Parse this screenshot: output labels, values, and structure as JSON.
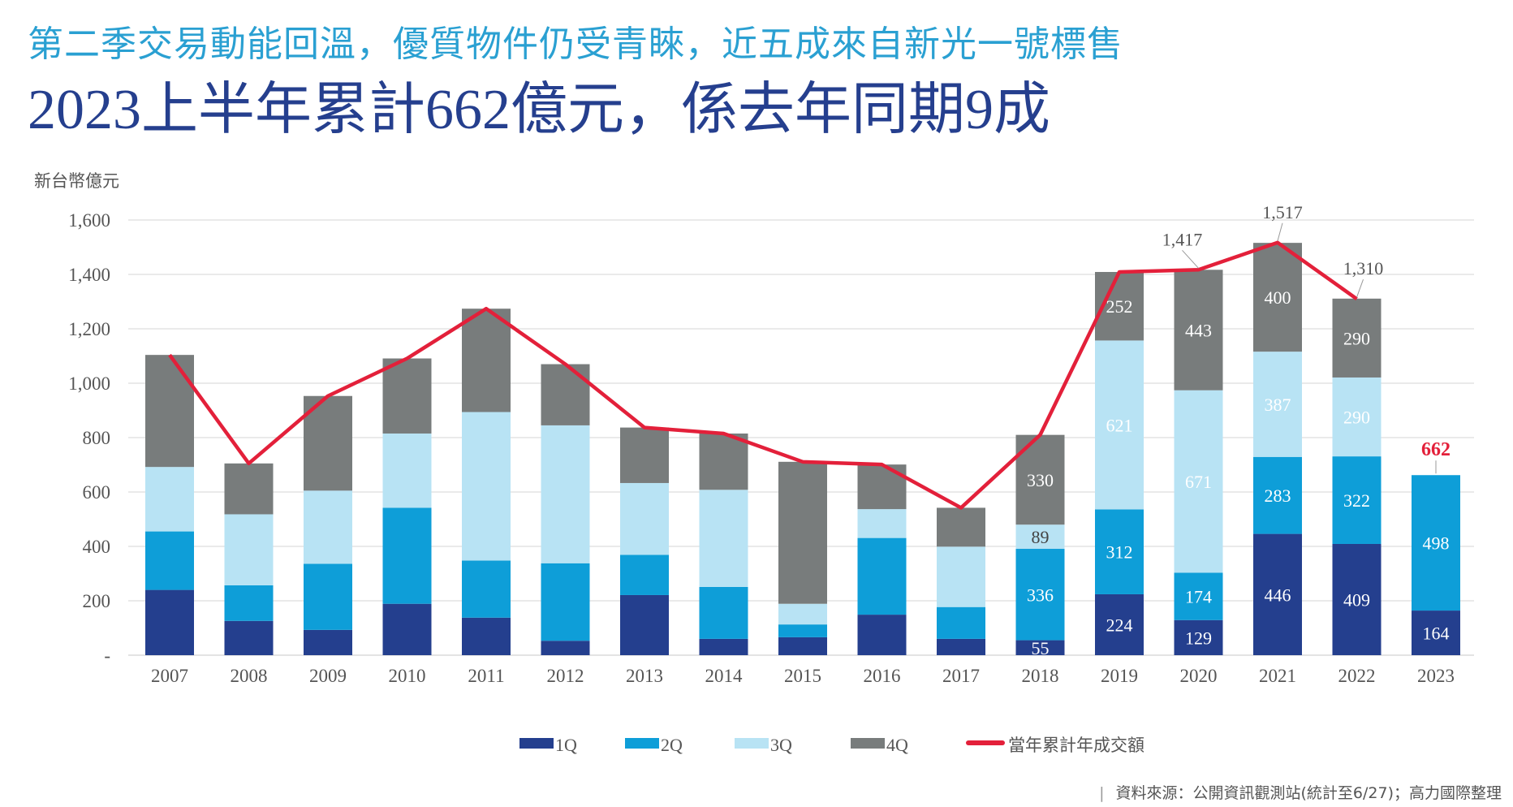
{
  "header": {
    "subtitle": "第二季交易動能回溫，優質物件仍受青睞，近五成來自新光一號標售",
    "title": "2023上半年累計662億元，係去年同期9成"
  },
  "source": "資料來源：公開資訊觀測站(統計至6/27)；高力國際整理",
  "chart_data": {
    "type": "bar",
    "stacked": true,
    "ylabel": "新台幣億元",
    "ylim": [
      0,
      1600
    ],
    "yticks": [
      0,
      200,
      400,
      600,
      800,
      1000,
      1200,
      1400,
      1600
    ],
    "ytick_labels": [
      "-",
      "200",
      "400",
      "600",
      "800",
      "1,000",
      "1,200",
      "1,400",
      "1,600"
    ],
    "grid": true,
    "legend_placement": "bottom",
    "categories": [
      "2007",
      "2008",
      "2009",
      "2010",
      "2011",
      "2012",
      "2013",
      "2014",
      "2015",
      "2016",
      "2017",
      "2018",
      "2019",
      "2020",
      "2021",
      "2022",
      "2023"
    ],
    "series": [
      {
        "name": "1Q",
        "color": "#243f8e",
        "values": [
          240,
          126,
          93,
          189,
          138,
          53,
          221,
          60,
          66,
          149,
          60,
          55,
          224,
          129,
          446,
          409,
          164
        ]
      },
      {
        "name": "2Q",
        "color": "#0e9ed8",
        "values": [
          215,
          131,
          243,
          353,
          210,
          285,
          148,
          191,
          47,
          282,
          117,
          336,
          312,
          174,
          283,
          322,
          498
        ]
      },
      {
        "name": "3Q",
        "color": "#b8e3f4",
        "values": [
          237,
          261,
          269,
          273,
          546,
          507,
          264,
          357,
          76,
          106,
          222,
          89,
          621,
          671,
          387,
          290,
          null
        ]
      },
      {
        "name": "4Q",
        "color": "#787c7c",
        "values": [
          412,
          187,
          348,
          276,
          380,
          225,
          204,
          207,
          522,
          164,
          143,
          330,
          252,
          443,
          400,
          290,
          null
        ]
      }
    ],
    "labeled_years": [
      "2018",
      "2019",
      "2020",
      "2021",
      "2022",
      "2023"
    ],
    "line": {
      "name": "當年累計年成交額",
      "color": "#e3203a",
      "values": [
        1104,
        705,
        953,
        1091,
        1274,
        1070,
        837,
        815,
        711,
        701,
        542,
        810,
        1409,
        1417,
        1517,
        1310,
        662
      ],
      "line_end": "2022"
    },
    "total_labels": [
      {
        "category": "2020",
        "text": "1,417"
      },
      {
        "category": "2021",
        "text": "1,517"
      },
      {
        "category": "2022",
        "text": "1,310"
      },
      {
        "category": "2023",
        "text": "662",
        "color": "#e3203a"
      }
    ]
  }
}
